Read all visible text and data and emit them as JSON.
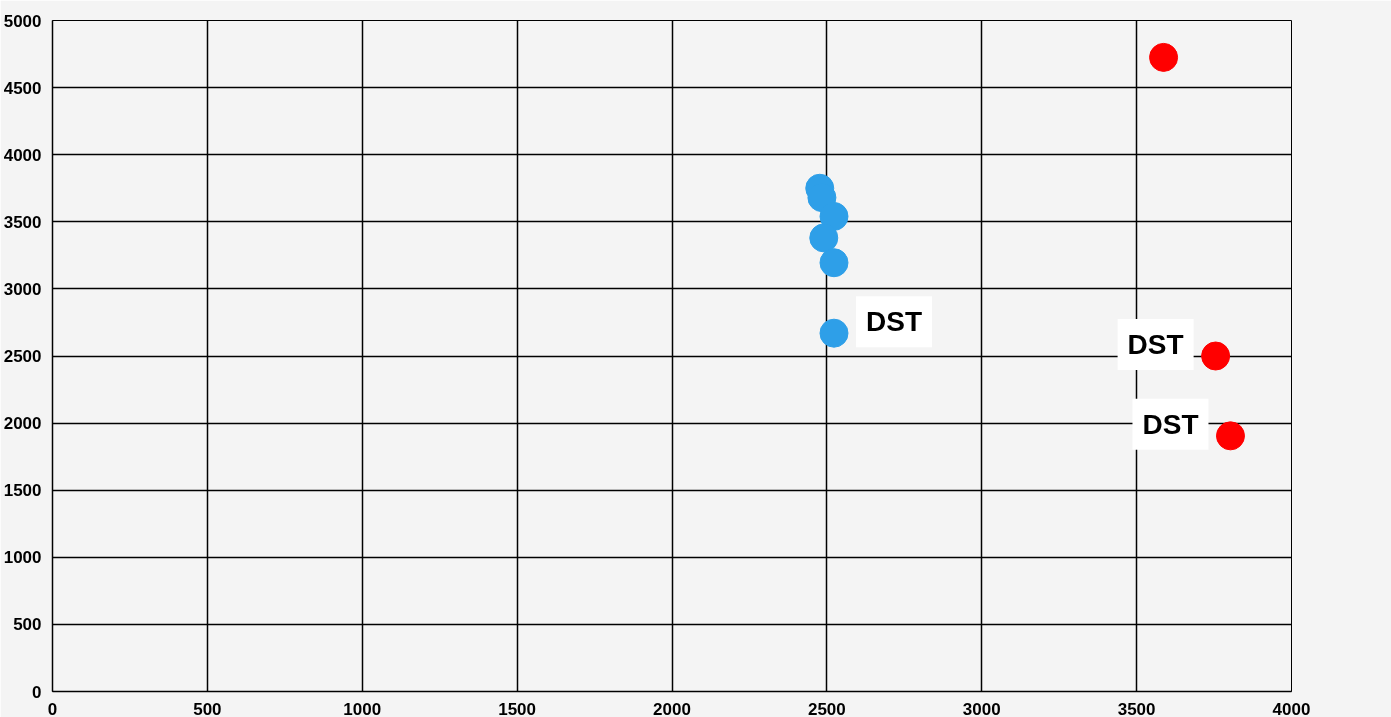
{
  "chart_data": {
    "type": "scatter",
    "xlim": [
      0,
      4000
    ],
    "ylim": [
      0,
      5000
    ],
    "xticks": [
      0,
      500,
      1000,
      1500,
      2000,
      2500,
      3000,
      3500,
      4000
    ],
    "yticks": [
      0,
      500,
      1000,
      1500,
      2000,
      2500,
      3000,
      3500,
      4000,
      4500,
      5000
    ],
    "grid": true,
    "marker": "circle",
    "series": [
      {
        "color": "#2e9fe8",
        "x": [
          2477,
          2484,
          2523,
          2490,
          2523,
          2523
        ],
        "values": [
          3750,
          3680,
          3540,
          3380,
          3195,
          2670
        ]
      },
      {
        "color": "#ff0000",
        "x": [
          3587,
          3755,
          3803
        ],
        "values": [
          4725,
          2500,
          1905
        ]
      }
    ],
    "annotations": [
      {
        "text": "DST",
        "x": 2523,
        "y": 2670
      },
      {
        "text": "DST",
        "x": 3755,
        "y": 2500
      },
      {
        "text": "DST",
        "x": 3803,
        "y": 1905
      }
    ]
  }
}
